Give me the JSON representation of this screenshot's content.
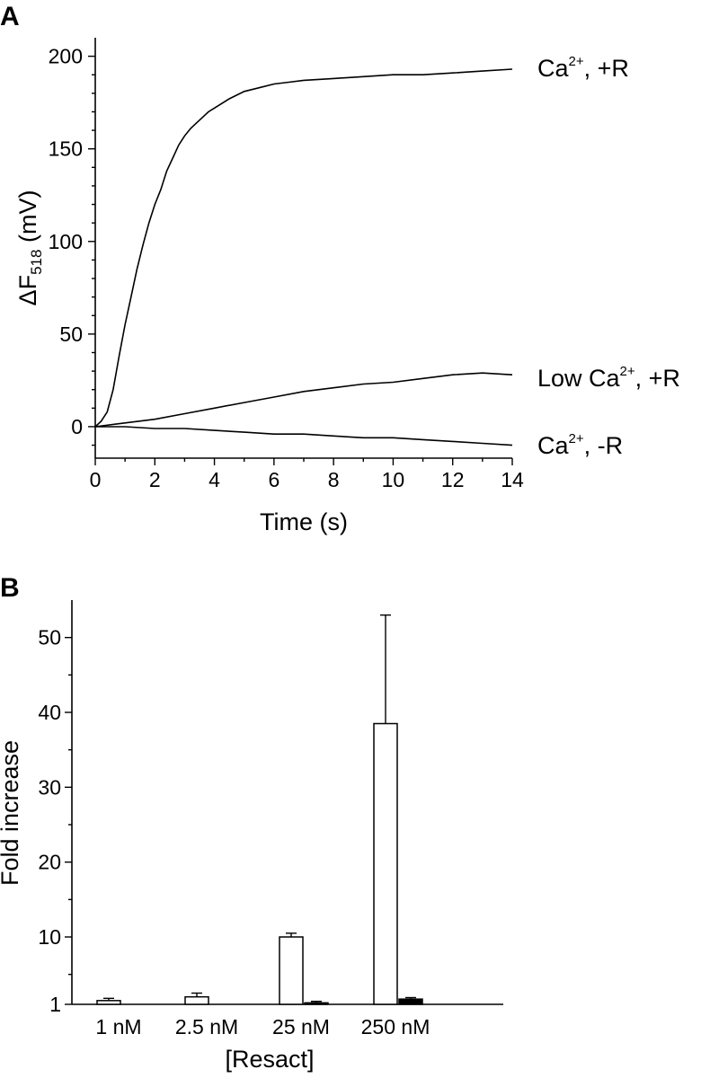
{
  "chart_data": [
    {
      "panel": "A",
      "type": "line",
      "xlabel": "Time (s)",
      "ylabel": "ΔF518 (mV)",
      "ylabel_main": "ΔF",
      "ylabel_sub": "518",
      "ylabel_unit": " (mV)",
      "xlim": [
        0,
        14
      ],
      "ylim": [
        -17,
        210
      ],
      "xticks": [
        0,
        2,
        4,
        6,
        8,
        10,
        12,
        14
      ],
      "yticks": [
        0,
        50,
        100,
        150,
        200
      ],
      "series": [
        {
          "name": "Ca2+, +R",
          "label_parts": [
            "Ca",
            "2+",
            ", +R"
          ],
          "x": [
            0,
            0.2,
            0.4,
            0.6,
            0.8,
            1.0,
            1.2,
            1.4,
            1.6,
            1.8,
            2.0,
            2.2,
            2.4,
            2.6,
            2.8,
            3.0,
            3.2,
            3.4,
            3.6,
            3.8,
            4.0,
            4.5,
            5.0,
            5.5,
            6.0,
            6.5,
            7.0,
            8.0,
            9.0,
            10.0,
            11.0,
            12.0,
            13.0,
            14.0
          ],
          "y": [
            0,
            3,
            8,
            20,
            38,
            55,
            70,
            85,
            98,
            110,
            120,
            128,
            138,
            145,
            152,
            157,
            161,
            164,
            167,
            170,
            172,
            177,
            181,
            183,
            185,
            186,
            187,
            188,
            189,
            190,
            190,
            191,
            192,
            193
          ]
        },
        {
          "name": "Low Ca2+, +R",
          "label_parts": [
            "Low Ca",
            "2+",
            ", +R"
          ],
          "x": [
            0,
            1,
            2,
            3,
            4,
            5,
            6,
            7,
            8,
            9,
            10,
            11,
            12,
            13,
            14
          ],
          "y": [
            0,
            2,
            4,
            7,
            10,
            13,
            16,
            19,
            21,
            23,
            24,
            26,
            28,
            29,
            28
          ]
        },
        {
          "name": "Ca2+, -R",
          "label_parts": [
            "Ca",
            "2+",
            ", -R"
          ],
          "x": [
            0,
            1,
            2,
            3,
            4,
            5,
            6,
            7,
            8,
            9,
            10,
            11,
            12,
            13,
            14
          ],
          "y": [
            0,
            0,
            -1,
            -1,
            -2,
            -3,
            -4,
            -4,
            -5,
            -6,
            -6,
            -7,
            -8,
            -9,
            -10
          ]
        }
      ]
    },
    {
      "panel": "B",
      "type": "bar",
      "xlabel": "[Resact]",
      "ylabel": "Fold increase",
      "ylim": [
        1,
        55
      ],
      "yticks": [
        1,
        10,
        20,
        30,
        40,
        50
      ],
      "categories": [
        "1 nM",
        "2.5 nM",
        "25 nM",
        "250 nM"
      ],
      "series": [
        {
          "fill": "open",
          "values": [
            1.5,
            2.0,
            10.0,
            38.5
          ],
          "errors": [
            0.3,
            0.5,
            0.5,
            14.5
          ]
        },
        {
          "fill": "filled",
          "values": [
            null,
            null,
            1.2,
            1.7
          ],
          "errors": [
            null,
            null,
            0.2,
            0.2
          ]
        }
      ]
    }
  ]
}
